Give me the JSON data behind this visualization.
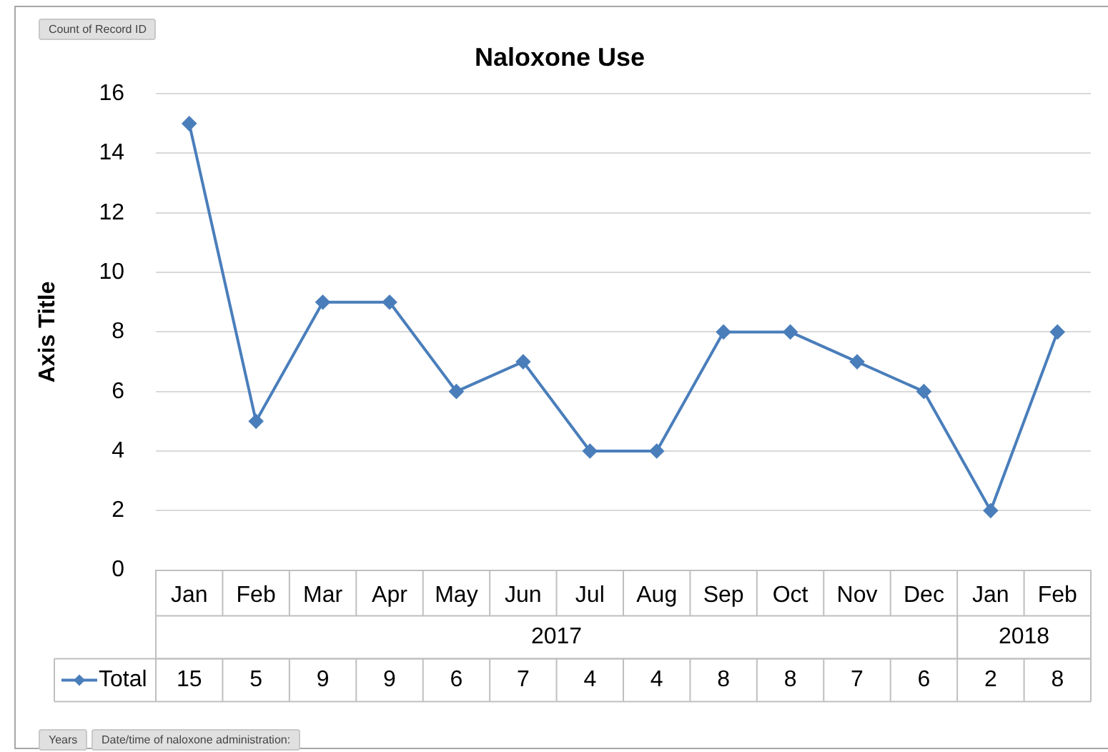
{
  "chart_data": {
    "type": "line",
    "title": "Naloxone Use",
    "ylabel": "Axis Title",
    "categories": [
      "Jan",
      "Feb",
      "Mar",
      "Apr",
      "May",
      "Jun",
      "Jul",
      "Aug",
      "Sep",
      "Oct",
      "Nov",
      "Dec",
      "Jan",
      "Feb"
    ],
    "series": [
      {
        "name": "Total",
        "color": "#4a7ebb",
        "values": [
          15,
          5,
          9,
          9,
          6,
          7,
          4,
          4,
          8,
          8,
          7,
          6,
          2,
          8
        ]
      }
    ],
    "ylim": [
      0,
      16
    ],
    "yticks": [
      0,
      2,
      4,
      6,
      8,
      10,
      12,
      14,
      16
    ],
    "grid": "y",
    "marker": "diamond",
    "line_style": "solid",
    "legend": "bottom left",
    "data_labels": true,
    "annotations": [
      "Count of Record ID",
      "2017",
      "2018",
      "Years",
      "Date/time of naloxone administration:"
    ]
  }
}
